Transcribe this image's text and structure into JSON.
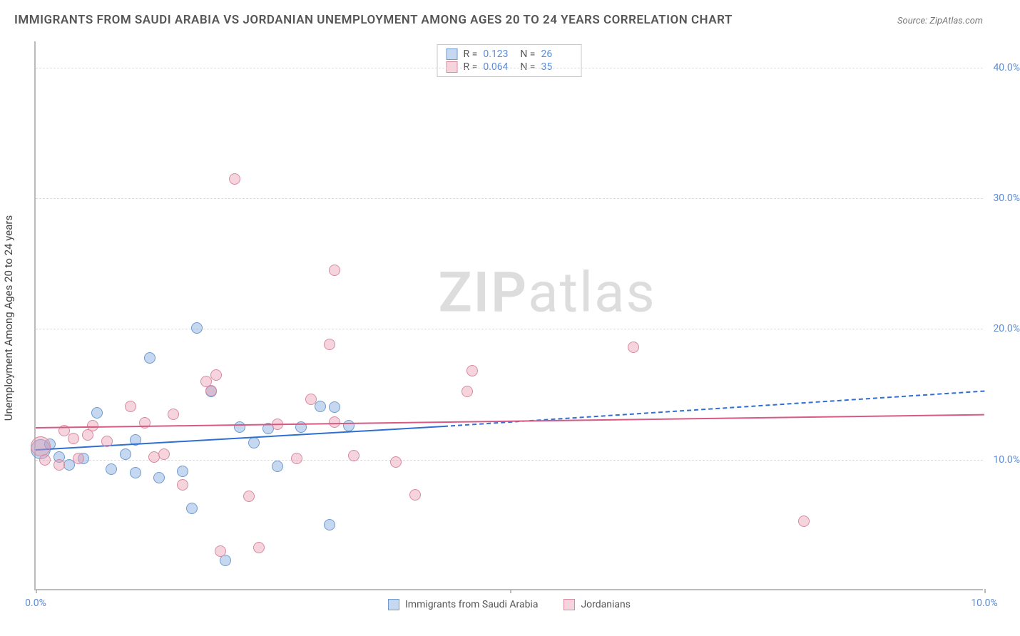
{
  "title": "IMMIGRANTS FROM SAUDI ARABIA VS JORDANIAN UNEMPLOYMENT AMONG AGES 20 TO 24 YEARS CORRELATION CHART",
  "source": "Source: ZipAtlas.com",
  "watermark_a": "ZIP",
  "watermark_b": "atlas",
  "chart": {
    "type": "scatter",
    "background_color": "#ffffff",
    "grid_color": "#dcdcdc",
    "axis_color": "#bbbbbb",
    "tick_label_color": "#5b8dd6",
    "ylabel": "Unemployment Among Ages 20 to 24 years",
    "ylabel_color": "#444444",
    "xlim": [
      0,
      10
    ],
    "ylim": [
      0,
      42
    ],
    "yticks": [
      10,
      20,
      30,
      40
    ],
    "ytick_labels": [
      "10.0%",
      "20.0%",
      "30.0%",
      "40.0%"
    ],
    "xticks": [
      0,
      5,
      10
    ],
    "xtick_labels": [
      "0.0%",
      "",
      "10.0%"
    ],
    "series": [
      {
        "name": "Immigrants from Saudi Arabia",
        "fill": "rgba(127,168,220,0.45)",
        "stroke": "#6f9bd1",
        "line_solid": "#2e6fd1",
        "r": 0.123,
        "n": 26,
        "trend_solid_from": [
          0,
          10.8
        ],
        "trend_solid_to": [
          4.3,
          12.6
        ],
        "trend_dash_from": [
          4.3,
          12.6
        ],
        "trend_dash_to": [
          10,
          15.3
        ],
        "points": [
          {
            "x": 0.05,
            "y": 10.8,
            "r": 14
          },
          {
            "x": 0.15,
            "y": 11.2,
            "r": 8
          },
          {
            "x": 0.25,
            "y": 10.2,
            "r": 8
          },
          {
            "x": 0.35,
            "y": 9.6,
            "r": 8
          },
          {
            "x": 0.5,
            "y": 10.1,
            "r": 8
          },
          {
            "x": 0.65,
            "y": 13.6,
            "r": 8
          },
          {
            "x": 0.8,
            "y": 9.3,
            "r": 8
          },
          {
            "x": 0.95,
            "y": 10.4,
            "r": 8
          },
          {
            "x": 1.05,
            "y": 9.0,
            "r": 8
          },
          {
            "x": 1.2,
            "y": 17.8,
            "r": 8
          },
          {
            "x": 1.3,
            "y": 8.6,
            "r": 8
          },
          {
            "x": 1.55,
            "y": 9.1,
            "r": 8
          },
          {
            "x": 1.65,
            "y": 6.3,
            "r": 8
          },
          {
            "x": 1.7,
            "y": 20.1,
            "r": 8
          },
          {
            "x": 1.85,
            "y": 15.2,
            "r": 8
          },
          {
            "x": 2.0,
            "y": 2.3,
            "r": 8
          },
          {
            "x": 2.15,
            "y": 12.5,
            "r": 8
          },
          {
            "x": 2.45,
            "y": 12.4,
            "r": 8
          },
          {
            "x": 2.55,
            "y": 9.5,
            "r": 8
          },
          {
            "x": 2.8,
            "y": 12.5,
            "r": 8
          },
          {
            "x": 3.0,
            "y": 14.1,
            "r": 8
          },
          {
            "x": 3.1,
            "y": 5.0,
            "r": 8
          },
          {
            "x": 3.15,
            "y": 14.0,
            "r": 8
          },
          {
            "x": 3.3,
            "y": 12.6,
            "r": 8
          },
          {
            "x": 1.05,
            "y": 11.5,
            "r": 8
          },
          {
            "x": 2.3,
            "y": 11.3,
            "r": 8
          }
        ]
      },
      {
        "name": "Jordanians",
        "fill": "rgba(232,160,180,0.45)",
        "stroke": "#d98aa0",
        "line_solid": "#d65a82",
        "r": 0.064,
        "n": 35,
        "trend_solid_from": [
          0,
          12.5
        ],
        "trend_solid_to": [
          10,
          13.5
        ],
        "points": [
          {
            "x": 0.05,
            "y": 11.0,
            "r": 14
          },
          {
            "x": 0.1,
            "y": 10.0,
            "r": 8
          },
          {
            "x": 0.25,
            "y": 9.6,
            "r": 8
          },
          {
            "x": 0.3,
            "y": 12.2,
            "r": 8
          },
          {
            "x": 0.4,
            "y": 11.6,
            "r": 8
          },
          {
            "x": 0.45,
            "y": 10.1,
            "r": 8
          },
          {
            "x": 0.6,
            "y": 12.6,
            "r": 8
          },
          {
            "x": 0.75,
            "y": 11.4,
            "r": 8
          },
          {
            "x": 1.0,
            "y": 14.1,
            "r": 8
          },
          {
            "x": 1.15,
            "y": 12.8,
            "r": 8
          },
          {
            "x": 1.25,
            "y": 10.2,
            "r": 8
          },
          {
            "x": 1.45,
            "y": 13.5,
            "r": 8
          },
          {
            "x": 1.55,
            "y": 8.1,
            "r": 8
          },
          {
            "x": 1.8,
            "y": 16.0,
            "r": 8
          },
          {
            "x": 1.85,
            "y": 15.3,
            "r": 8
          },
          {
            "x": 1.9,
            "y": 16.5,
            "r": 8
          },
          {
            "x": 1.95,
            "y": 3.0,
            "r": 8
          },
          {
            "x": 2.1,
            "y": 31.5,
            "r": 8
          },
          {
            "x": 2.25,
            "y": 7.2,
            "r": 8
          },
          {
            "x": 2.35,
            "y": 3.3,
            "r": 8
          },
          {
            "x": 2.55,
            "y": 12.7,
            "r": 8
          },
          {
            "x": 2.75,
            "y": 10.1,
            "r": 8
          },
          {
            "x": 2.9,
            "y": 14.6,
            "r": 8
          },
          {
            "x": 3.1,
            "y": 18.8,
            "r": 8
          },
          {
            "x": 3.15,
            "y": 12.9,
            "r": 8
          },
          {
            "x": 3.15,
            "y": 24.5,
            "r": 8
          },
          {
            "x": 3.35,
            "y": 10.3,
            "r": 8
          },
          {
            "x": 3.8,
            "y": 9.8,
            "r": 8
          },
          {
            "x": 4.0,
            "y": 7.3,
            "r": 8
          },
          {
            "x": 4.6,
            "y": 16.8,
            "r": 8
          },
          {
            "x": 4.55,
            "y": 15.2,
            "r": 8
          },
          {
            "x": 6.3,
            "y": 18.6,
            "r": 8
          },
          {
            "x": 8.1,
            "y": 5.3,
            "r": 8
          },
          {
            "x": 1.35,
            "y": 10.4,
            "r": 8
          },
          {
            "x": 0.55,
            "y": 11.9,
            "r": 8
          }
        ]
      }
    ],
    "legend_top": {
      "r_label": "R =",
      "n_label": "N ="
    },
    "legend_bottom": [
      {
        "series": 0
      },
      {
        "series": 1
      }
    ]
  }
}
